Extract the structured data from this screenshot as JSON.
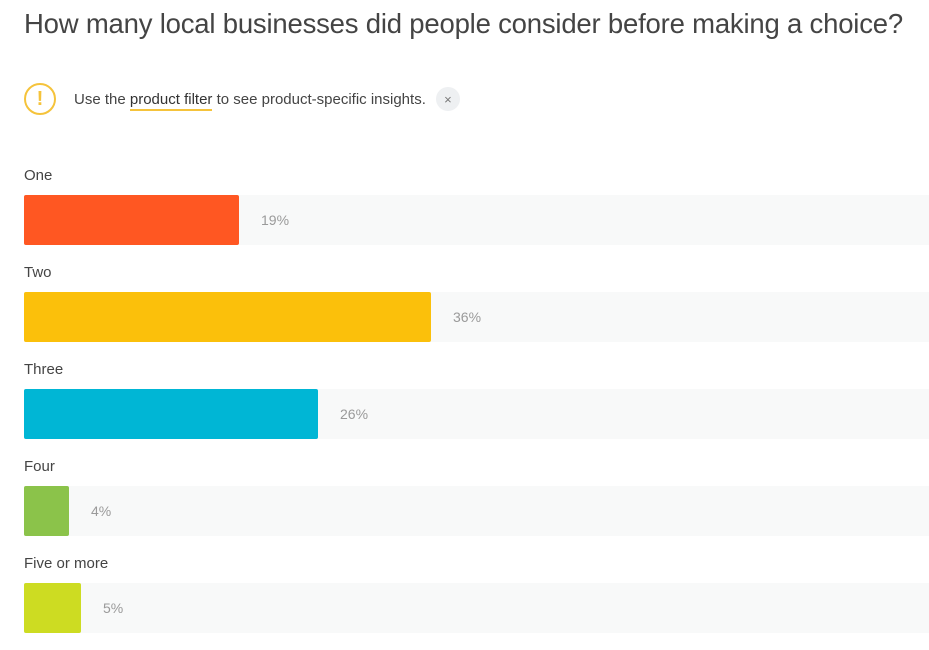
{
  "title": "How many local businesses did people consider before making a choice?",
  "notice": {
    "prefix": "Use the",
    "link": "product filter",
    "suffix": "to see product-specific insights.",
    "icon": "warning-icon",
    "close_icon": "close-icon",
    "close_glyph": "×",
    "warn_glyph": "!"
  },
  "chart_data": {
    "type": "bar",
    "orientation": "horizontal",
    "categories": [
      "One",
      "Two",
      "Three",
      "Four",
      "Five or more"
    ],
    "values": [
      19,
      36,
      26,
      4,
      5
    ],
    "value_labels": [
      "19%",
      "36%",
      "26%",
      "4%",
      "5%"
    ],
    "colors": [
      "#ff5722",
      "#fbc00b",
      "#00b6d5",
      "#8bc34a",
      "#cddc22"
    ],
    "xlim": [
      0,
      80
    ],
    "grid": false
  }
}
